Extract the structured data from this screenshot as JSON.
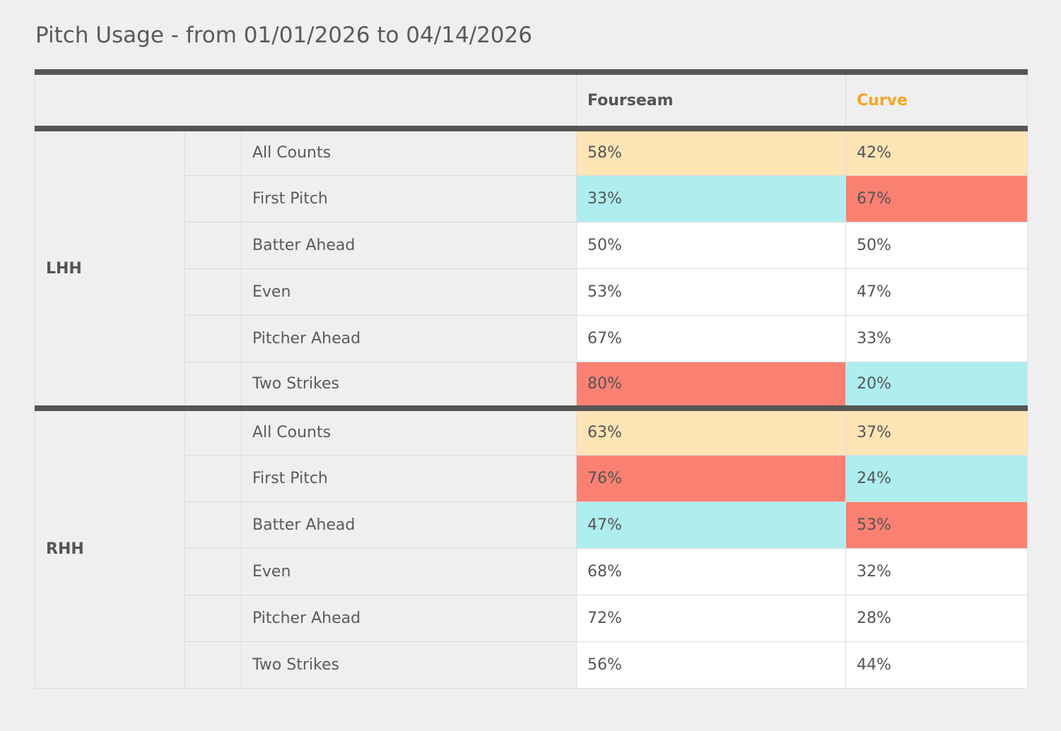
{
  "title": "Pitch Usage - from 01/01/2026 to 04/14/2026",
  "columns": [
    {
      "label": "Fourseam",
      "color": "#555555"
    },
    {
      "label": "Curve",
      "color": "#f5a623"
    }
  ],
  "colors": {
    "all_counts": "#ffe4b5",
    "high": "#fa8072",
    "low": "#afeeee",
    "neutral": "#ffffff"
  },
  "groups": [
    {
      "hand": "LHH",
      "rows": [
        {
          "count": "All Counts",
          "fourseam": "58%",
          "curve": "42%",
          "fourseam_hl": "all",
          "curve_hl": "all"
        },
        {
          "count": "First Pitch",
          "fourseam": "33%",
          "curve": "67%",
          "fourseam_hl": "low",
          "curve_hl": "high"
        },
        {
          "count": "Batter Ahead",
          "fourseam": "50%",
          "curve": "50%",
          "fourseam_hl": "none",
          "curve_hl": "none"
        },
        {
          "count": "Even",
          "fourseam": "53%",
          "curve": "47%",
          "fourseam_hl": "none",
          "curve_hl": "none"
        },
        {
          "count": "Pitcher Ahead",
          "fourseam": "67%",
          "curve": "33%",
          "fourseam_hl": "none",
          "curve_hl": "none"
        },
        {
          "count": "Two Strikes",
          "fourseam": "80%",
          "curve": "20%",
          "fourseam_hl": "high",
          "curve_hl": "low"
        }
      ]
    },
    {
      "hand": "RHH",
      "rows": [
        {
          "count": "All Counts",
          "fourseam": "63%",
          "curve": "37%",
          "fourseam_hl": "all",
          "curve_hl": "all"
        },
        {
          "count": "First Pitch",
          "fourseam": "76%",
          "curve": "24%",
          "fourseam_hl": "high",
          "curve_hl": "low"
        },
        {
          "count": "Batter Ahead",
          "fourseam": "47%",
          "curve": "53%",
          "fourseam_hl": "low",
          "curve_hl": "high"
        },
        {
          "count": "Even",
          "fourseam": "68%",
          "curve": "32%",
          "fourseam_hl": "none",
          "curve_hl": "none"
        },
        {
          "count": "Pitcher Ahead",
          "fourseam": "72%",
          "curve": "28%",
          "fourseam_hl": "none",
          "curve_hl": "none"
        },
        {
          "count": "Two Strikes",
          "fourseam": "56%",
          "curve": "44%",
          "fourseam_hl": "none",
          "curve_hl": "none"
        }
      ]
    }
  ]
}
